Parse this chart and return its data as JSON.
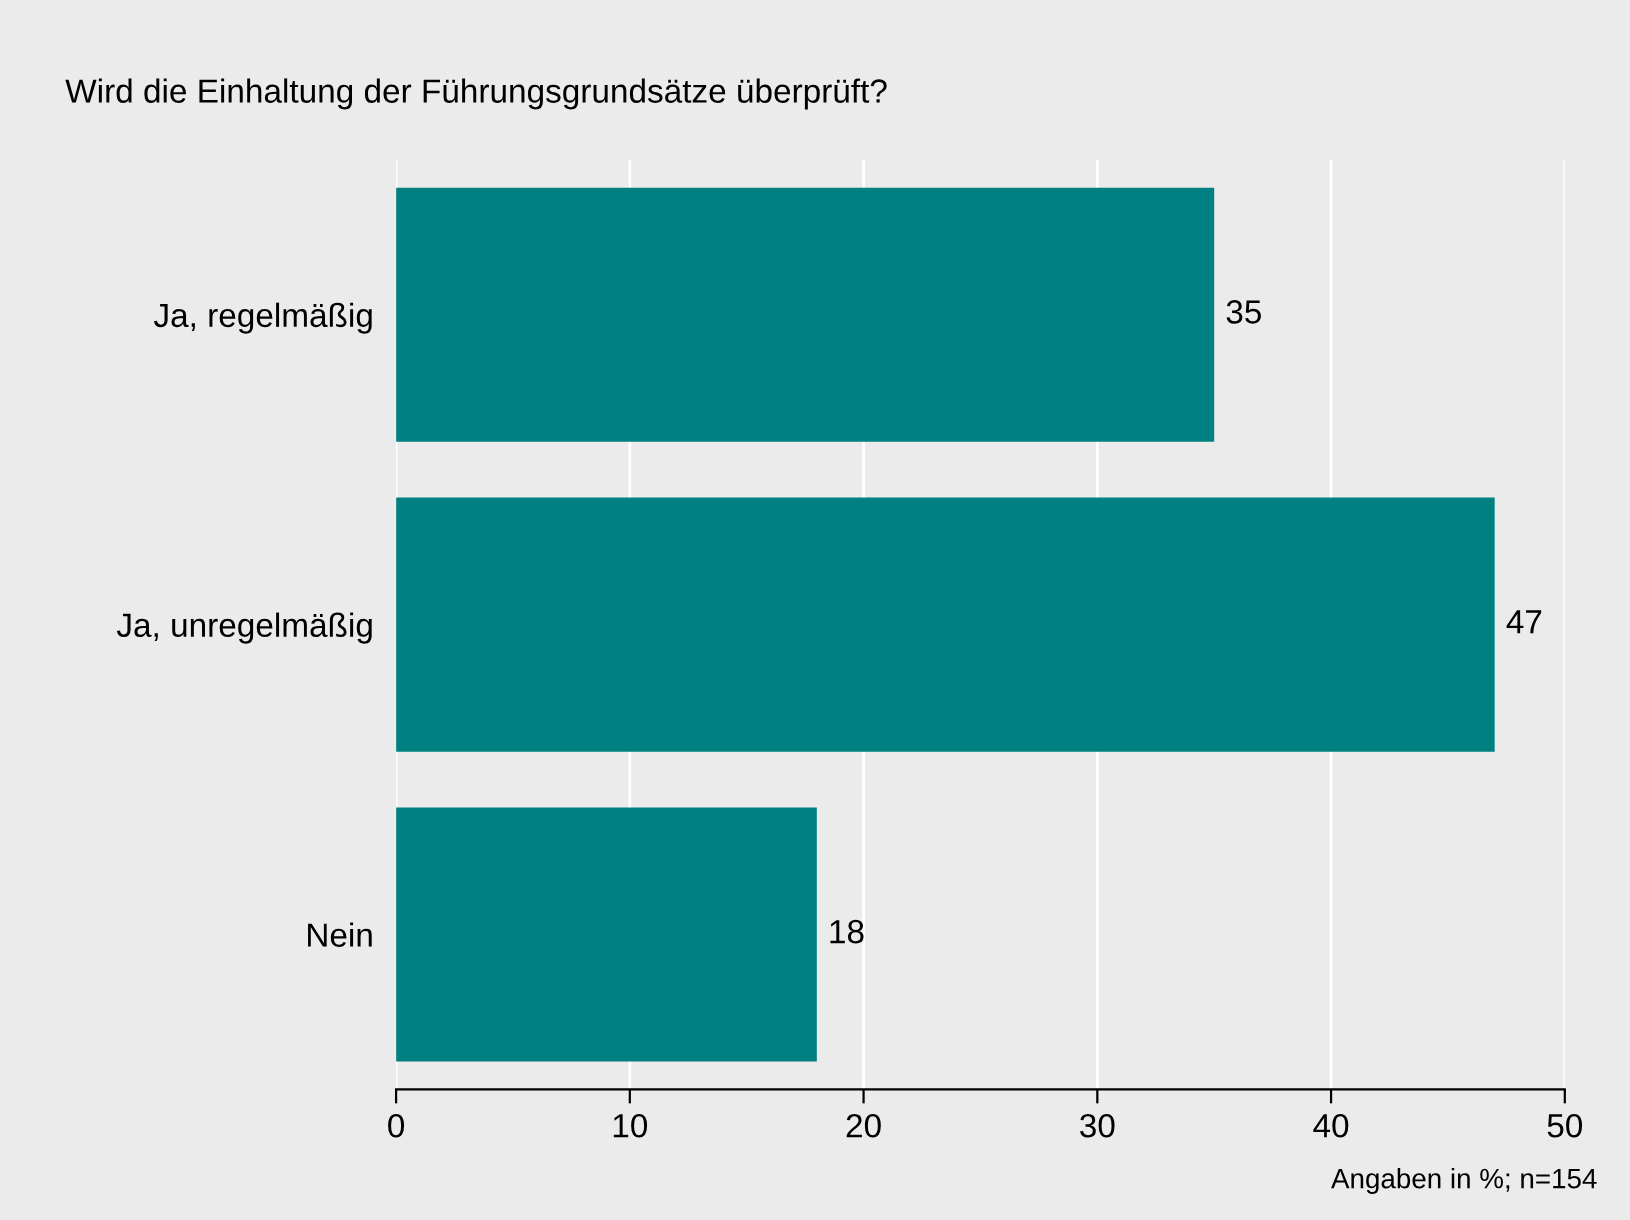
{
  "chart_data": {
    "type": "bar",
    "orientation": "horizontal",
    "title": "Wird die Einhaltung der Führungsgrundsätze überprüft?",
    "categories": [
      "Ja, regelmäßig",
      "Ja, unregelmäßig",
      "Nein"
    ],
    "values": [
      35,
      47,
      18
    ],
    "color": "#008080",
    "xlim": [
      0,
      50
    ],
    "xticks": [
      0,
      10,
      20,
      30,
      40,
      50
    ],
    "grid": "x",
    "data_labels": true,
    "annotations": [
      "Angaben in %; n=154"
    ]
  }
}
